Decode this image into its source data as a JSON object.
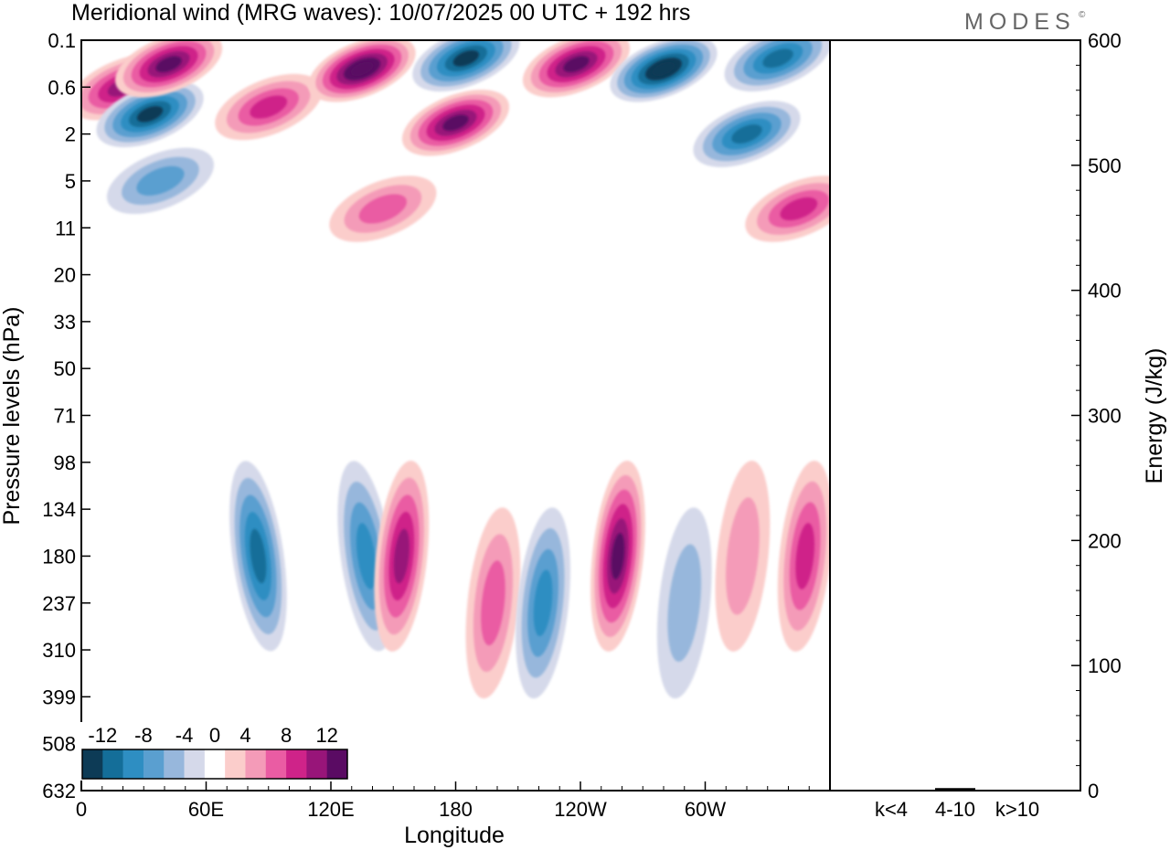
{
  "header": {
    "title": "Meridional wind (MRG waves):  10/07/2025  00 UTC  + 192 hrs",
    "brand": "MODES",
    "brand_mark": "©"
  },
  "chart_data": [
    {
      "type": "heatmap",
      "title": "Meridional wind (MRG waves):  10/07/2025  00 UTC  + 192 hrs",
      "xlabel": "Longitude",
      "ylabel": "Pressure levels (hPa)",
      "x_ticks": [
        "0",
        "60E",
        "120E",
        "180",
        "120W",
        "60W"
      ],
      "x_tick_values": [
        0,
        60,
        120,
        180,
        240,
        300
      ],
      "xlim": [
        0,
        360
      ],
      "y_ticks": [
        "0.1",
        "0.6",
        "2",
        "5",
        "11",
        "20",
        "33",
        "50",
        "71",
        "98",
        "134",
        "180",
        "237",
        "310",
        "399",
        "508",
        "632"
      ],
      "y_scale": "model levels (pressure axis, top = 0.1 hPa)",
      "colorbar": {
        "labels": [
          "-12",
          "-8",
          "-4",
          "0",
          "4",
          "8",
          "12"
        ],
        "levels": [
          -14,
          -12,
          -10,
          -8,
          -6,
          -4,
          -2,
          2,
          4,
          6,
          8,
          10,
          12,
          14
        ],
        "colors": [
          "#0d3b56",
          "#146e99",
          "#2e8ec2",
          "#5a9fd0",
          "#97b7dc",
          "#d5d9ea",
          "#ffffff",
          "#fbcdcb",
          "#f49bb8",
          "#ea5ca3",
          "#cf2389",
          "#981579",
          "#5a0b63"
        ],
        "placement": "bottom-left"
      },
      "features": [
        {
          "lon": 20,
          "level": "0.6",
          "value": 10
        },
        {
          "lon": 33,
          "level": "1.2",
          "value": -12
        },
        {
          "lon": 42,
          "level": "0.25",
          "value": 12
        },
        {
          "lon": 90,
          "level": "1",
          "value": 8
        },
        {
          "lon": 135,
          "level": "0.3",
          "value": 14
        },
        {
          "lon": 185,
          "level": "0.2",
          "value": -12
        },
        {
          "lon": 180,
          "level": "1.5",
          "value": 12
        },
        {
          "lon": 238,
          "level": "0.25",
          "value": 12
        },
        {
          "lon": 280,
          "level": "0.3",
          "value": -14
        },
        {
          "lon": 320,
          "level": "2",
          "value": -10
        },
        {
          "lon": 335,
          "level": "0.2",
          "value": -10
        },
        {
          "lon": 345,
          "level": "8",
          "value": 8
        },
        {
          "lon": 38,
          "level": "5",
          "value": -6
        },
        {
          "lon": 145,
          "level": "8",
          "value": 6
        },
        {
          "lon": 85,
          "level": "180",
          "value": -10
        },
        {
          "lon": 137,
          "level": "180",
          "value": -8
        },
        {
          "lon": 154,
          "level": "180",
          "value": 10
        },
        {
          "lon": 198,
          "level": "237",
          "value": 6
        },
        {
          "lon": 222,
          "level": "237",
          "value": -8
        },
        {
          "lon": 258,
          "level": "180",
          "value": 12
        },
        {
          "lon": 290,
          "level": "237",
          "value": -4
        },
        {
          "lon": 318,
          "level": "180",
          "value": 4
        },
        {
          "lon": 348,
          "level": "180",
          "value": 8
        }
      ]
    },
    {
      "type": "bar",
      "ylabel": "Energy (J/kg)",
      "categories": [
        "k<4",
        "4-10",
        "k>10"
      ],
      "values": [
        0.5,
        2,
        0.3
      ],
      "ylim": [
        0,
        600
      ],
      "y_ticks": [
        "0",
        "100",
        "200",
        "300",
        "400",
        "500",
        "600"
      ]
    }
  ]
}
